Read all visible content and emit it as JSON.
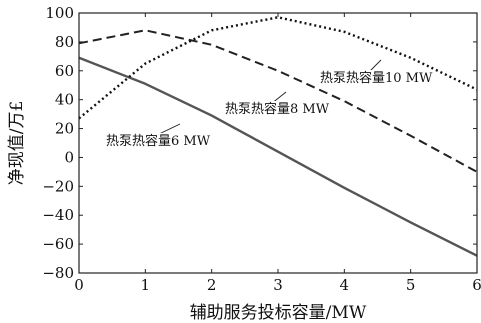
{
  "chart_data": {
    "type": "line",
    "xlabel": "辅助服务投标容量/MW",
    "ylabel": "净现值/万£",
    "xlim": [
      0,
      6
    ],
    "ylim": [
      -80,
      100
    ],
    "xticks": [
      0,
      1,
      2,
      3,
      4,
      5,
      6
    ],
    "yticks": [
      -80,
      -60,
      -40,
      -20,
      0,
      20,
      40,
      60,
      80,
      100
    ],
    "xtick_labels": [
      "0",
      "1",
      "2",
      "3",
      "4",
      "5",
      "6"
    ],
    "ytick_labels": [
      "−80",
      "−60",
      "−40",
      "−20",
      "0",
      "20",
      "40",
      "60",
      "80",
      "100"
    ],
    "grid": false,
    "series": [
      {
        "name": "热泵热容量6 MW",
        "style": "solid",
        "color": "#555555",
        "x": [
          0,
          1,
          2,
          3,
          4,
          5,
          6
        ],
        "y": [
          69,
          51,
          29,
          4,
          -21,
          -45,
          -68
        ]
      },
      {
        "name": "热泵热容量8 MW",
        "style": "dashed",
        "color": "#222222",
        "x": [
          0,
          1,
          2,
          3,
          4,
          5,
          6
        ],
        "y": [
          79,
          88,
          78,
          60,
          39,
          15,
          -10
        ]
      },
      {
        "name": "热泵热容量10 MW",
        "style": "dotted",
        "color": "#111111",
        "x": [
          0,
          1,
          2,
          3,
          4,
          5,
          6
        ],
        "y": [
          27,
          65,
          88,
          97,
          87,
          69,
          47
        ]
      }
    ],
    "annotations": [
      {
        "text": "热泵热容量10 MW",
        "series": 2
      },
      {
        "text": "热泵热容量8 MW",
        "series": 1
      },
      {
        "text": "热泵热容量6 MW",
        "series": 0
      }
    ]
  }
}
